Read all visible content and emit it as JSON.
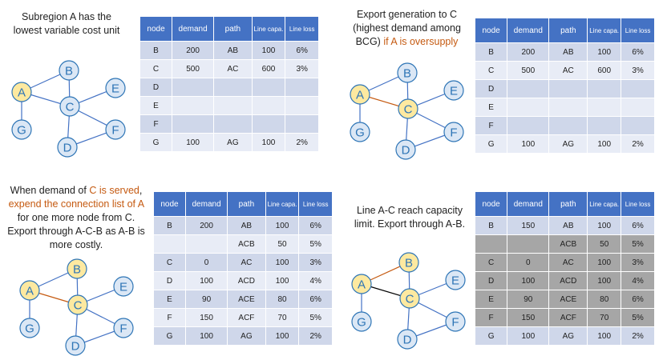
{
  "headers": {
    "node": "node",
    "demand": "demand",
    "path": "path",
    "cap": "Line capa.",
    "loss": "Line loss"
  },
  "colors": {
    "node_fill": "#dbe7f5",
    "node_highlight": "#fde9a0",
    "node_stroke": "#2e75b6",
    "edge": "#4472c4",
    "edge_highlight": "#c55a11",
    "edge_dark": "#000000",
    "header_bg": "#4472c4",
    "row_odd": "#cfd7ea",
    "row_even": "#e8ecf6",
    "row_grey": "#a6a6a6",
    "highlight_text": "#c55a11"
  },
  "panels": [
    {
      "caption_parts": [
        {
          "text": "Subregion A has the lowest variable cost unit",
          "hl": false
        }
      ],
      "highlighted_nodes": [
        "A"
      ],
      "rows": [
        {
          "node": "B",
          "demand": "200",
          "path": "AB",
          "cap": "100",
          "loss": "6%",
          "grey": false
        },
        {
          "node": "C",
          "demand": "500",
          "path": "AC",
          "cap": "600",
          "loss": "3%",
          "grey": false
        },
        {
          "node": "D",
          "demand": "",
          "path": "",
          "cap": "",
          "loss": "",
          "grey": false
        },
        {
          "node": "E",
          "demand": "",
          "path": "",
          "cap": "",
          "loss": "",
          "grey": false
        },
        {
          "node": "F",
          "demand": "",
          "path": "",
          "cap": "",
          "loss": "",
          "grey": false
        },
        {
          "node": "G",
          "demand": "100",
          "path": "AG",
          "cap": "100",
          "loss": "2%",
          "grey": false
        }
      ]
    },
    {
      "caption_parts": [
        {
          "text": "Export generation to C (highest demand among BCG) ",
          "hl": false
        },
        {
          "text": "if A is oversupply",
          "hl": true
        }
      ],
      "highlighted_nodes": [
        "A",
        "C"
      ],
      "rows": [
        {
          "node": "B",
          "demand": "200",
          "path": "AB",
          "cap": "100",
          "loss": "6%",
          "grey": false
        },
        {
          "node": "C",
          "demand": "500",
          "path": "AC",
          "cap": "600",
          "loss": "3%",
          "grey": false
        },
        {
          "node": "D",
          "demand": "",
          "path": "",
          "cap": "",
          "loss": "",
          "grey": false
        },
        {
          "node": "E",
          "demand": "",
          "path": "",
          "cap": "",
          "loss": "",
          "grey": false
        },
        {
          "node": "F",
          "demand": "",
          "path": "",
          "cap": "",
          "loss": "",
          "grey": false
        },
        {
          "node": "G",
          "demand": "100",
          "path": "AG",
          "cap": "100",
          "loss": "2%",
          "grey": false
        }
      ]
    },
    {
      "caption_parts": [
        {
          "text": "When demand of ",
          "hl": false
        },
        {
          "text": "C is served",
          "hl": true
        },
        {
          "text": ", ",
          "hl": false
        },
        {
          "text": "expend the connection list of A",
          "hl": true
        },
        {
          "text": " for one more node from C. Export through A-C-B as A-B is more costly.",
          "hl": false
        }
      ],
      "highlighted_nodes": [
        "A",
        "B",
        "C"
      ],
      "rows": [
        {
          "node": "B",
          "demand": "200",
          "path": "AB",
          "cap": "100",
          "loss": "6%",
          "grey": false
        },
        {
          "node": "",
          "demand": "",
          "path": "ACB",
          "cap": "50",
          "loss": "5%",
          "grey": false
        },
        {
          "node": "C",
          "demand": "0",
          "path": "AC",
          "cap": "100",
          "loss": "3%",
          "grey": false
        },
        {
          "node": "D",
          "demand": "100",
          "path": "ACD",
          "cap": "100",
          "loss": "4%",
          "grey": false
        },
        {
          "node": "E",
          "demand": "90",
          "path": "ACE",
          "cap": "80",
          "loss": "6%",
          "grey": false
        },
        {
          "node": "F",
          "demand": "150",
          "path": "ACF",
          "cap": "70",
          "loss": "5%",
          "grey": false
        },
        {
          "node": "G",
          "demand": "100",
          "path": "AG",
          "cap": "100",
          "loss": "2%",
          "grey": false
        }
      ]
    },
    {
      "caption_parts": [
        {
          "text": "Line A-C reach capacity limit. Export through A-B.",
          "hl": false
        }
      ],
      "highlighted_nodes": [
        "A",
        "B",
        "C"
      ],
      "rows": [
        {
          "node": "B",
          "demand": "150",
          "path": "AB",
          "cap": "100",
          "loss": "6%",
          "grey": false
        },
        {
          "node": "",
          "demand": "",
          "path": "ACB",
          "cap": "50",
          "loss": "5%",
          "grey": true
        },
        {
          "node": "C",
          "demand": "0",
          "path": "AC",
          "cap": "100",
          "loss": "3%",
          "grey": true
        },
        {
          "node": "D",
          "demand": "100",
          "path": "ACD",
          "cap": "100",
          "loss": "4%",
          "grey": true
        },
        {
          "node": "E",
          "demand": "90",
          "path": "ACE",
          "cap": "80",
          "loss": "6%",
          "grey": true
        },
        {
          "node": "F",
          "demand": "150",
          "path": "ACF",
          "cap": "70",
          "loss": "5%",
          "grey": true
        },
        {
          "node": "G",
          "demand": "100",
          "path": "AG",
          "cap": "100",
          "loss": "2%",
          "grey": false
        }
      ]
    }
  ],
  "graph": {
    "nodes": [
      "A",
      "B",
      "C",
      "D",
      "E",
      "F",
      "G"
    ],
    "edges": [
      [
        "A",
        "B"
      ],
      [
        "A",
        "C"
      ],
      [
        "A",
        "G"
      ],
      [
        "C",
        "B"
      ],
      [
        "C",
        "E"
      ],
      [
        "C",
        "F"
      ],
      [
        "C",
        "D"
      ],
      [
        "D",
        "F"
      ]
    ],
    "panel_edge_styles": [
      {},
      {
        "A-C": "highlight"
      },
      {
        "A-C": "highlight"
      },
      {
        "A-B": "highlight",
        "A-C": "dark"
      }
    ]
  }
}
